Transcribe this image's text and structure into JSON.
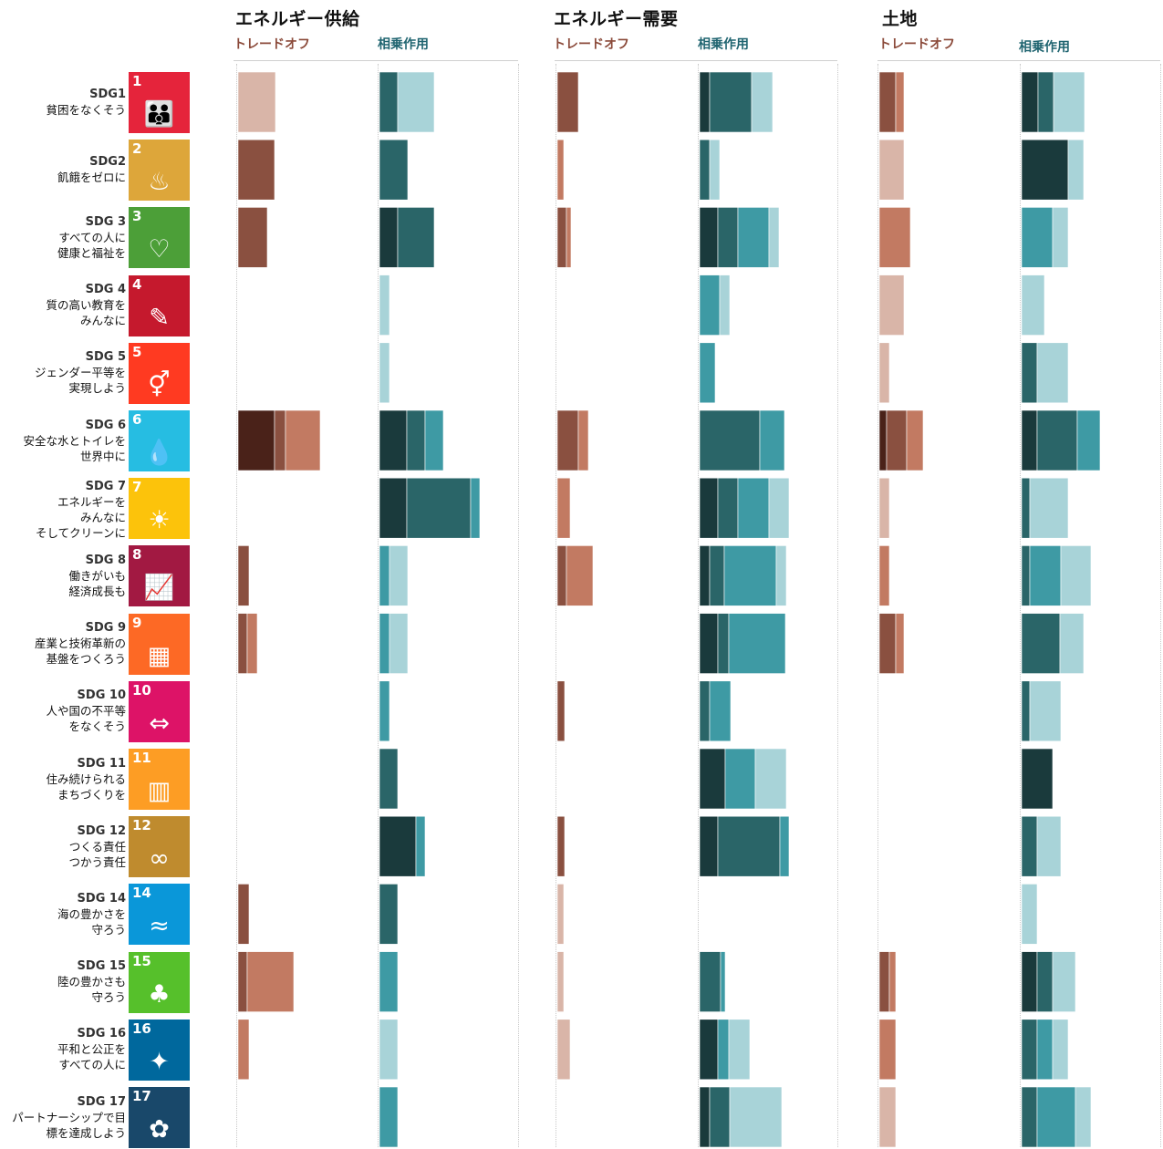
{
  "colors": {
    "tradeoff": [
      "#4a2219",
      "#8a5040",
      "#c27a62",
      "#d9b5a8"
    ],
    "synergy": [
      "#1a3a3c",
      "#2a6568",
      "#3e9aa4",
      "#a8d3d8"
    ]
  },
  "groups": [
    {
      "title": "エネルギー供給",
      "tradeoff_label": "トレードオフ",
      "synergy_label": "相乗作用"
    },
    {
      "title": "エネルギー需要",
      "tradeoff_label": "トレードオフ",
      "synergy_label": "相乗作用"
    },
    {
      "title": "土地",
      "tradeoff_label": "トレードオフ",
      "synergy_label": "相乗作用"
    }
  ],
  "sdgs": [
    {
      "code": "SDG1",
      "lines": [
        "貧困をなくそう"
      ],
      "num": "1",
      "color": "#e5243b",
      "icon": "family-icon",
      "glyph": "👪"
    },
    {
      "code": "SDG2",
      "lines": [
        "飢餓をゼロに"
      ],
      "num": "2",
      "color": "#dda63a",
      "icon": "bowl-icon",
      "glyph": "♨"
    },
    {
      "code": "SDG 3",
      "lines": [
        "すべての人に",
        "健康と福祉を"
      ],
      "num": "3",
      "color": "#4c9f38",
      "icon": "heartbeat-icon",
      "glyph": "♡"
    },
    {
      "code": "SDG 4",
      "lines": [
        "質の高い教育を",
        "みんなに"
      ],
      "num": "4",
      "color": "#c5192d",
      "icon": "book-icon",
      "glyph": "✎"
    },
    {
      "code": "SDG 5",
      "lines": [
        "ジェンダー平等を",
        "実現しよう"
      ],
      "num": "5",
      "color": "#ff3a21",
      "icon": "gender-icon",
      "glyph": "⚥"
    },
    {
      "code": "SDG 6",
      "lines": [
        "安全な水とトイレを",
        "世界中に"
      ],
      "num": "6",
      "color": "#26bde2",
      "icon": "water-drop-icon",
      "glyph": "💧"
    },
    {
      "code": "SDG 7",
      "lines": [
        "エネルギーを",
        "みんなに",
        "そしてクリーンに"
      ],
      "num": "7",
      "color": "#fcc30b",
      "icon": "sun-icon",
      "glyph": "☀"
    },
    {
      "code": "SDG 8",
      "lines": [
        "働きがいも",
        "経済成長も"
      ],
      "num": "8",
      "color": "#a21942",
      "icon": "growth-chart-icon",
      "glyph": "📈"
    },
    {
      "code": "SDG 9",
      "lines": [
        "産業と技術革新の",
        "基盤をつくろう"
      ],
      "num": "9",
      "color": "#fd6925",
      "icon": "cubes-icon",
      "glyph": "▦"
    },
    {
      "code": "SDG 10",
      "lines": [
        "人や国の不平等",
        "をなくそう"
      ],
      "num": "10",
      "color": "#dd1367",
      "icon": "equality-icon",
      "glyph": "⇔"
    },
    {
      "code": "SDG 11",
      "lines": [
        "住み続けられる",
        "まちづくりを"
      ],
      "num": "11",
      "color": "#fd9d24",
      "icon": "city-icon",
      "glyph": "▥"
    },
    {
      "code": "SDG 12",
      "lines": [
        "つくる責任",
        "つかう責任"
      ],
      "num": "12",
      "color": "#bf8b2e",
      "icon": "infinity-icon",
      "glyph": "∞"
    },
    {
      "code": "SDG 14",
      "lines": [
        "海の豊かさを",
        "守ろう"
      ],
      "num": "14",
      "color": "#0a97d9",
      "icon": "fish-icon",
      "glyph": "≈"
    },
    {
      "code": "SDG 15",
      "lines": [
        "陸の豊かさも",
        "守ろう"
      ],
      "num": "15",
      "color": "#56c02b",
      "icon": "tree-icon",
      "glyph": "♣"
    },
    {
      "code": "SDG 16",
      "lines": [
        "平和と公正を",
        "すべての人に"
      ],
      "num": "16",
      "color": "#00689d",
      "icon": "dove-icon",
      "glyph": "✦"
    },
    {
      "code": "SDG 17",
      "lines": [
        "パートナーシップで目",
        "標を達成しよう"
      ],
      "num": "17",
      "color": "#19486a",
      "icon": "partnership-icon",
      "glyph": "✿"
    }
  ],
  "chart_data": {
    "type": "bar",
    "categories": [
      "SDG1",
      "SDG2",
      "SDG 3",
      "SDG 4",
      "SDG 5",
      "SDG 6",
      "SDG 7",
      "SDG 8",
      "SDG 9",
      "SDG 10",
      "SDG 11",
      "SDG 12",
      "SDG 14",
      "SDG 15",
      "SDG 16",
      "SDG 17"
    ],
    "stack_levels": 4,
    "groups": [
      {
        "title": "エネルギー供給",
        "tradeoff": [
          [
            0,
            0,
            0,
            41
          ],
          [
            0,
            40,
            0,
            0
          ],
          [
            0,
            32,
            0,
            0
          ],
          [
            0,
            0,
            0,
            0
          ],
          [
            0,
            0,
            0,
            0
          ],
          [
            40,
            12,
            38,
            0
          ],
          [
            0,
            0,
            0,
            0
          ],
          [
            0,
            12,
            0,
            0
          ],
          [
            0,
            10,
            11,
            0
          ],
          [
            0,
            0,
            0,
            0
          ],
          [
            0,
            0,
            0,
            0
          ],
          [
            0,
            0,
            0,
            0
          ],
          [
            0,
            12,
            0,
            0
          ],
          [
            0,
            10,
            51,
            0
          ],
          [
            0,
            0,
            12,
            0
          ],
          [
            0,
            0,
            0,
            0
          ]
        ],
        "synergy": [
          [
            0,
            20,
            0,
            40
          ],
          [
            0,
            31,
            0,
            0
          ],
          [
            20,
            40,
            0,
            0
          ],
          [
            0,
            0,
            0,
            11
          ],
          [
            0,
            0,
            0,
            11
          ],
          [
            30,
            20,
            20,
            0
          ],
          [
            30,
            70,
            10,
            0
          ],
          [
            0,
            0,
            11,
            20
          ],
          [
            0,
            0,
            11,
            20
          ],
          [
            0,
            0,
            11,
            0
          ],
          [
            0,
            20,
            0,
            0
          ],
          [
            40,
            0,
            10,
            0
          ],
          [
            0,
            20,
            0,
            0
          ],
          [
            0,
            0,
            20,
            0
          ],
          [
            0,
            0,
            0,
            20
          ],
          [
            0,
            0,
            20,
            0
          ]
        ]
      },
      {
        "title": "エネルギー需要",
        "tradeoff": [
          [
            0,
            23,
            0,
            0
          ],
          [
            0,
            0,
            7,
            0
          ],
          [
            0,
            10,
            5,
            0
          ],
          [
            0,
            0,
            0,
            0
          ],
          [
            0,
            0,
            0,
            0
          ],
          [
            0,
            23,
            11,
            0
          ],
          [
            0,
            0,
            14,
            0
          ],
          [
            0,
            10,
            29,
            0
          ],
          [
            0,
            0,
            0,
            0
          ],
          [
            0,
            8,
            0,
            0
          ],
          [
            0,
            0,
            0,
            0
          ],
          [
            0,
            8,
            0,
            0
          ],
          [
            0,
            0,
            0,
            7
          ],
          [
            0,
            0,
            0,
            7
          ],
          [
            0,
            0,
            0,
            14
          ],
          [
            0,
            0,
            0,
            0
          ]
        ],
        "synergy": [
          [
            11,
            46,
            0,
            23
          ],
          [
            0,
            11,
            0,
            11
          ],
          [
            20,
            22,
            34,
            11
          ],
          [
            0,
            0,
            22,
            11
          ],
          [
            0,
            0,
            17,
            0
          ],
          [
            0,
            66,
            27,
            0
          ],
          [
            20,
            22,
            34,
            22
          ],
          [
            11,
            16,
            57,
            11
          ],
          [
            20,
            12,
            62,
            0
          ],
          [
            0,
            11,
            23,
            0
          ],
          [
            28,
            0,
            33,
            34
          ],
          [
            20,
            68,
            10,
            0
          ],
          [
            0,
            0,
            0,
            0
          ],
          [
            0,
            23,
            5,
            0
          ],
          [
            20,
            0,
            12,
            23
          ],
          [
            11,
            22,
            0,
            57
          ]
        ],
        "note": ""
      },
      {
        "title": "土地",
        "tradeoff": [
          [
            0,
            18,
            9,
            0
          ],
          [
            0,
            0,
            0,
            27
          ],
          [
            0,
            0,
            34,
            0
          ],
          [
            0,
            0,
            0,
            27
          ],
          [
            0,
            0,
            0,
            11
          ],
          [
            8,
            22,
            18,
            0
          ],
          [
            0,
            0,
            0,
            11
          ],
          [
            0,
            0,
            11,
            0
          ],
          [
            0,
            18,
            9,
            0
          ],
          [
            0,
            0,
            0,
            0
          ],
          [
            0,
            0,
            0,
            0
          ],
          [
            0,
            0,
            0,
            0
          ],
          [
            0,
            0,
            0,
            0
          ],
          [
            0,
            11,
            7,
            0
          ],
          [
            0,
            0,
            18,
            0
          ],
          [
            0,
            0,
            0,
            18
          ]
        ],
        "synergy": [
          [
            18,
            17,
            0,
            34
          ],
          [
            51,
            0,
            0,
            17
          ],
          [
            0,
            0,
            34,
            17
          ],
          [
            0,
            0,
            0,
            25
          ],
          [
            0,
            17,
            0,
            34
          ],
          [
            17,
            44,
            25,
            0
          ],
          [
            0,
            9,
            0,
            42
          ],
          [
            0,
            9,
            34,
            33
          ],
          [
            0,
            42,
            0,
            26
          ],
          [
            0,
            9,
            0,
            34
          ],
          [
            34,
            0,
            0,
            0
          ],
          [
            0,
            17,
            0,
            26
          ],
          [
            0,
            0,
            0,
            17
          ],
          [
            17,
            17,
            0,
            25
          ],
          [
            0,
            17,
            17,
            17
          ],
          [
            0,
            17,
            42,
            17
          ]
        ]
      }
    ]
  }
}
